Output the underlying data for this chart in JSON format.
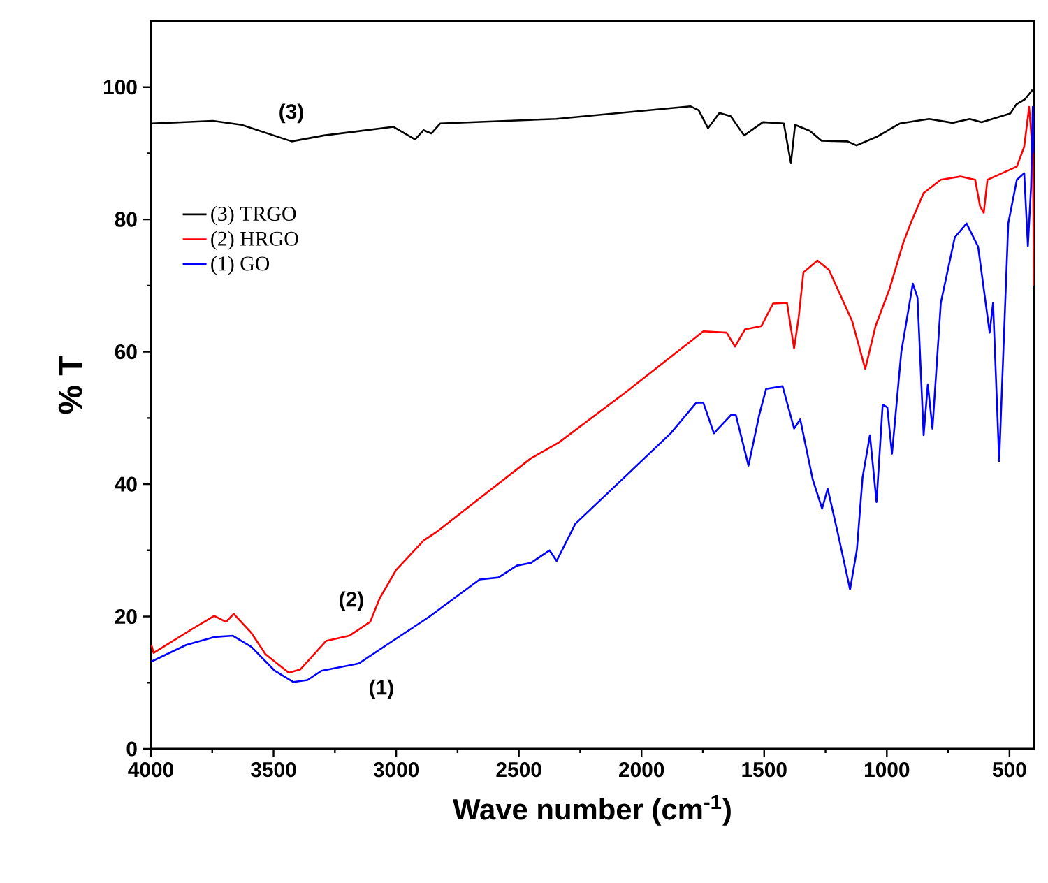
{
  "chart_data": {
    "type": "line",
    "xlabel": "Wave number (cm$^{-1}$)",
    "ylabel": "% T",
    "xlim": [
      4000,
      400
    ],
    "xticks": [
      4000,
      3500,
      3000,
      2500,
      2000,
      1500,
      1000,
      500
    ],
    "ylim": [
      0,
      110
    ],
    "yticks": [
      0,
      20,
      40,
      60,
      80,
      100
    ],
    "grid": false,
    "legend": "left",
    "marker": "none",
    "line_style": "solid",
    "series": [
      {
        "name": "(3) TRGO",
        "color": "#000000",
        "x": [
          3996,
          3747,
          3630,
          3426,
          3295,
          3011,
          2923,
          2889,
          2857,
          2821,
          2348,
          1801,
          1767,
          1729,
          1682,
          1636,
          1582,
          1505,
          1420,
          1391,
          1374,
          1314,
          1266,
          1160,
          1124,
          1041,
          947,
          828,
          732,
          662,
          614,
          497,
          472,
          436,
          406
        ],
        "values": [
          94.5,
          94.9,
          94.3,
          91.8,
          92.7,
          94.0,
          92.1,
          93.5,
          93.0,
          94.5,
          95.2,
          97.1,
          96.5,
          93.8,
          96.1,
          95.6,
          92.7,
          94.7,
          94.5,
          88.5,
          94.3,
          93.4,
          91.9,
          91.8,
          91.2,
          92.5,
          94.5,
          95.2,
          94.6,
          95.2,
          94.7,
          96.0,
          97.4,
          98.2,
          99.6
        ]
      },
      {
        "name": "(2) HRGO",
        "color": "#ff0000",
        "x": [
          3998,
          3989,
          3837,
          3742,
          3694,
          3662,
          3590,
          3533,
          3438,
          3391,
          3286,
          3191,
          3106,
          3068,
          3001,
          2888,
          2831,
          2451,
          2337,
          2071,
          1748,
          1653,
          1619,
          1578,
          1511,
          1464,
          1407,
          1378,
          1359,
          1340,
          1283,
          1236,
          1141,
          1088,
          1046,
          989,
          932,
          903,
          850,
          780,
          700,
          640,
          620,
          605,
          590,
          530,
          470,
          440,
          420,
          405,
          400
        ],
        "values": [
          15.7,
          14.5,
          18.0,
          20.1,
          19.2,
          20.4,
          17.5,
          14.3,
          11.5,
          12.0,
          16.3,
          17.1,
          19.2,
          22.7,
          27.0,
          31.5,
          32.9,
          43.9,
          46.3,
          53.7,
          63.1,
          62.9,
          60.8,
          63.4,
          63.9,
          67.3,
          67.4,
          60.5,
          65.3,
          72.0,
          73.8,
          72.4,
          64.6,
          57.4,
          63.9,
          69.5,
          76.6,
          79.4,
          84,
          86,
          86.5,
          86,
          82,
          81,
          86,
          87,
          88,
          91,
          97,
          90,
          70
        ]
      },
      {
        "name": "(1) GO",
        "color": "#0000ff",
        "x": [
          3998,
          3856,
          3742,
          3666,
          3590,
          3495,
          3419,
          3362,
          3305,
          3153,
          3039,
          2868,
          2660,
          2583,
          2508,
          2451,
          2375,
          2346,
          2270,
          2071,
          1881,
          1777,
          1748,
          1705,
          1634,
          1615,
          1564,
          1520,
          1492,
          1425,
          1378,
          1353,
          1302,
          1264,
          1241,
          1198,
          1150,
          1122,
          1099,
          1069,
          1042,
          1017,
          998,
          979,
          941,
          894,
          875,
          850,
          833,
          814,
          780,
          723,
          675,
          628,
          581,
          567,
          542,
          505,
          470,
          440,
          425,
          412,
          405,
          400
        ],
        "values": [
          13.2,
          15.7,
          16.9,
          17.1,
          15.4,
          11.8,
          10.1,
          10.4,
          11.8,
          12.9,
          15.7,
          19.9,
          25.6,
          25.9,
          27.7,
          28.1,
          30.0,
          28.4,
          34.0,
          41.0,
          47.7,
          52.3,
          52.3,
          47.7,
          50.5,
          50.4,
          42.8,
          50.5,
          54.4,
          54.8,
          48.4,
          49.8,
          40.7,
          36.3,
          39.3,
          32.3,
          24.1,
          30.1,
          41.0,
          47.4,
          37.3,
          52.0,
          51.6,
          44.6,
          60.0,
          70.3,
          68.2,
          47.4,
          55.1,
          48.4,
          67.4,
          77.3,
          79.4,
          75.9,
          62.9,
          67.4,
          43.5,
          79.4,
          86,
          87,
          76,
          85,
          97,
          90
        ]
      }
    ],
    "annotations": [
      "(3)",
      "(2)",
      "(1)"
    ]
  }
}
